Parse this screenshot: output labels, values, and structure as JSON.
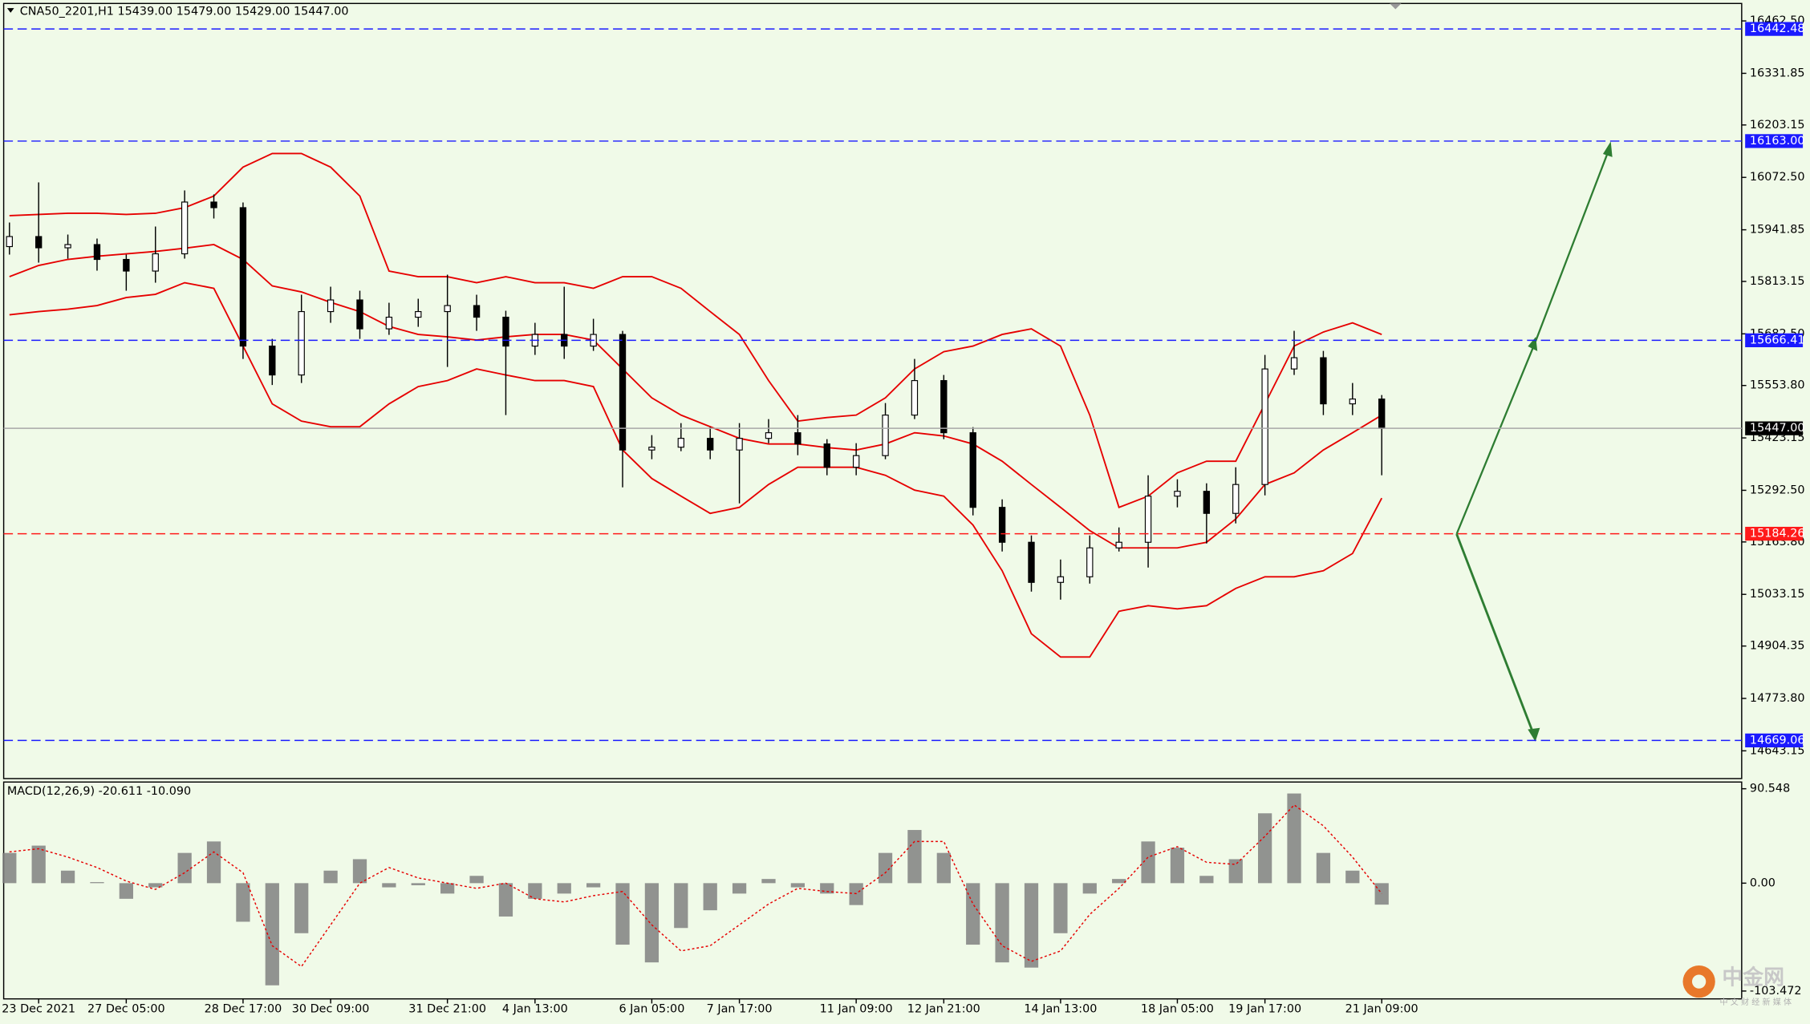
{
  "chart_data": [
    {
      "type": "candlestick",
      "title": "CNA50_2201,H1  15439.00 15479.00 15429.00 15447.00",
      "ylim": [
        14574,
        16506
      ],
      "yticks": [
        {
          "value": 16462.5,
          "label": "16462.50"
        },
        {
          "value": 16331.85,
          "label": "16331.85"
        },
        {
          "value": 16203.15,
          "label": "16203.15"
        },
        {
          "value": 16072.5,
          "label": "16072.50"
        },
        {
          "value": 15941.85,
          "label": "15941.85"
        },
        {
          "value": 15813.15,
          "label": "15813.15"
        },
        {
          "value": 15682.5,
          "label": "15682.50"
        },
        {
          "value": 15553.8,
          "label": "15553.80"
        },
        {
          "value": 15423.15,
          "label": "15423.15"
        },
        {
          "value": 15292.5,
          "label": "15292.50"
        },
        {
          "value": 15163.8,
          "label": "15163.80"
        },
        {
          "value": 15033.15,
          "label": "15033.15"
        },
        {
          "value": 14904.35,
          "label": "14904.35"
        },
        {
          "value": 14773.8,
          "label": "14773.80"
        },
        {
          "value": 14643.15,
          "label": "14643.15"
        }
      ],
      "levels": [
        {
          "value": 16442.48,
          "label": "16442.48",
          "color": "#1a1aff"
        },
        {
          "value": 16163,
          "label": "16163.00",
          "color": "#1a1aff"
        },
        {
          "value": 15666.41,
          "label": "15666.41",
          "color": "#1a1aff"
        },
        {
          "value": 15447,
          "label": "15447.00",
          "color": "#000000"
        },
        {
          "value": 15184.26,
          "label": "15184.26",
          "color": "#ff1a1a"
        },
        {
          "value": 14669.06,
          "label": "14669.06",
          "color": "#1a1aff"
        }
      ],
      "open": [
        15900,
        15925,
        15897,
        15905,
        15868,
        15839,
        15882,
        16011,
        15997,
        15652,
        15580,
        15738,
        15767,
        15695,
        15724,
        15738,
        15753,
        15724,
        15652,
        15681,
        15652,
        15681,
        15393,
        15400,
        15422,
        15393,
        15422,
        15436,
        15408,
        15350,
        15379,
        15480,
        15566,
        15436,
        15250,
        15163,
        15063,
        15077,
        15149,
        15163,
        15278,
        15290,
        15235,
        15307,
        15595,
        15623,
        15508,
        15520
      ],
      "high": [
        15960,
        16060,
        15930,
        15920,
        15880,
        15950,
        16040,
        16030,
        16010,
        15670,
        15780,
        15800,
        15790,
        15760,
        15770,
        15830,
        15780,
        15740,
        15710,
        15800,
        15720,
        15690,
        15430,
        15460,
        15450,
        15460,
        15470,
        15480,
        15420,
        15410,
        15510,
        15620,
        15580,
        15450,
        15270,
        15180,
        15120,
        15180,
        15200,
        15330,
        15320,
        15310,
        15350,
        15630,
        15690,
        15640,
        15560,
        15530
      ],
      "low": [
        15880,
        15860,
        15870,
        15840,
        15790,
        15810,
        15870,
        15970,
        15620,
        15555,
        15560,
        15710,
        15670,
        15680,
        15700,
        15600,
        15690,
        15480,
        15630,
        15620,
        15640,
        15300,
        15370,
        15390,
        15370,
        15260,
        15410,
        15380,
        15330,
        15330,
        15370,
        15470,
        15420,
        15230,
        15140,
        15040,
        15020,
        15060,
        15140,
        15100,
        15250,
        15160,
        15210,
        15280,
        15580,
        15480,
        15480,
        15330
      ],
      "close": [
        15925,
        15897,
        15905,
        15868,
        15839,
        15882,
        16011,
        15997,
        15652,
        15580,
        15738,
        15767,
        15695,
        15724,
        15738,
        15753,
        15724,
        15652,
        15681,
        15652,
        15681,
        15393,
        15400,
        15422,
        15393,
        15422,
        15436,
        15408,
        15350,
        15379,
        15480,
        15566,
        15436,
        15250,
        15163,
        15063,
        15077,
        15149,
        15163,
        15278,
        15290,
        15235,
        15307,
        15595,
        15623,
        15508,
        15520,
        15447
      ],
      "bands": {
        "color": "#e60000",
        "upper": [
          15977,
          15980,
          15983,
          15983,
          15980,
          15983,
          15997,
          16026,
          16098,
          16132,
          16132,
          16098,
          16026,
          15839,
          15825,
          15825,
          15810,
          15825,
          15810,
          15810,
          15796,
          15825,
          15825,
          15796,
          15738,
          15681,
          15566,
          15465,
          15474,
          15480,
          15523,
          15595,
          15638,
          15652,
          15681,
          15695,
          15652,
          15480,
          15250,
          15278,
          15336,
          15365,
          15365,
          15508,
          15652,
          15687,
          15710,
          15681
        ],
        "middle": [
          15825,
          15853,
          15868,
          15876,
          15882,
          15888,
          15896,
          15905,
          15868,
          15802,
          15787,
          15761,
          15738,
          15701,
          15681,
          15675,
          15667,
          15675,
          15681,
          15681,
          15667,
          15595,
          15523,
          15480,
          15451,
          15422,
          15408,
          15408,
          15399,
          15393,
          15408,
          15436,
          15428,
          15408,
          15365,
          15307,
          15250,
          15192,
          15149,
          15149,
          15149,
          15163,
          15221,
          15307,
          15336,
          15393,
          15436,
          15480
        ],
        "lower": [
          15730,
          15738,
          15744,
          15753,
          15773,
          15781,
          15810,
          15796,
          15652,
          15508,
          15465,
          15451,
          15451,
          15508,
          15551,
          15566,
          15595,
          15580,
          15566,
          15566,
          15551,
          15393,
          15322,
          15278,
          15235,
          15250,
          15307,
          15350,
          15350,
          15350,
          15330,
          15293,
          15278,
          15206,
          15092,
          14935,
          14877,
          14877,
          14991,
          15005,
          14997,
          15005,
          15048,
          15077,
          15077,
          15092,
          15135,
          15273
        ]
      }
    },
    {
      "type": "bar",
      "title": "MACD(12,26,9) -20.611 -10.090",
      "ylim": [
        -111,
        97
      ],
      "yticks": [
        90.548,
        {
          "value": 0,
          "label": "0.00"
        },
        -103.472
      ],
      "categories": [
        null,
        "23 Dec 2021",
        null,
        null,
        "27 Dec 05:00",
        null,
        null,
        null,
        "28 Dec 17:00",
        null,
        null,
        "30 Dec 09:00",
        null,
        null,
        null,
        "31 Dec 21:00",
        null,
        null,
        "4 Jan 13:00",
        null,
        null,
        null,
        "6 Jan 05:00",
        null,
        null,
        "7 Jan 17:00",
        null,
        null,
        null,
        "11 Jan 09:00",
        null,
        null,
        "12 Jan 21:00",
        null,
        null,
        null,
        "14 Jan 13:00",
        null,
        null,
        null,
        "18 Jan 05:00",
        null,
        null,
        "19 Jan 17:00",
        null,
        null,
        null,
        "21 Jan 09:00"
      ],
      "color": "#808080",
      "values": [
        29,
        36,
        12,
        1,
        -15,
        -4,
        29,
        40,
        -37,
        -98,
        -48,
        12,
        23,
        -4,
        -2,
        -10,
        7,
        -32,
        -15,
        -10,
        -4,
        -59,
        -76,
        -43,
        -26,
        -10,
        4,
        -4,
        -10,
        -21,
        29,
        51,
        29,
        -59,
        -76,
        -81,
        -48,
        -10,
        4,
        40,
        34,
        7,
        23,
        67,
        86,
        29,
        12,
        -20.611
      ],
      "signal": {
        "color": "#e60000",
        "values": [
          30,
          33,
          25,
          15,
          2,
          -6,
          10,
          30,
          10,
          -60,
          -80,
          -40,
          0,
          15,
          5,
          0,
          -5,
          0,
          -15,
          -18,
          -12,
          -8,
          -40,
          -65,
          -60,
          -40,
          -20,
          -5,
          -8,
          -10,
          10,
          40,
          40,
          -20,
          -60,
          -75,
          -65,
          -30,
          -5,
          25,
          35,
          20,
          18,
          45,
          75,
          55,
          25,
          -10.09
        ]
      }
    },
    {
      "type": "watermark",
      "text": "中金网",
      "subtext": "中 文 财 经 新 媒 体"
    }
  ]
}
